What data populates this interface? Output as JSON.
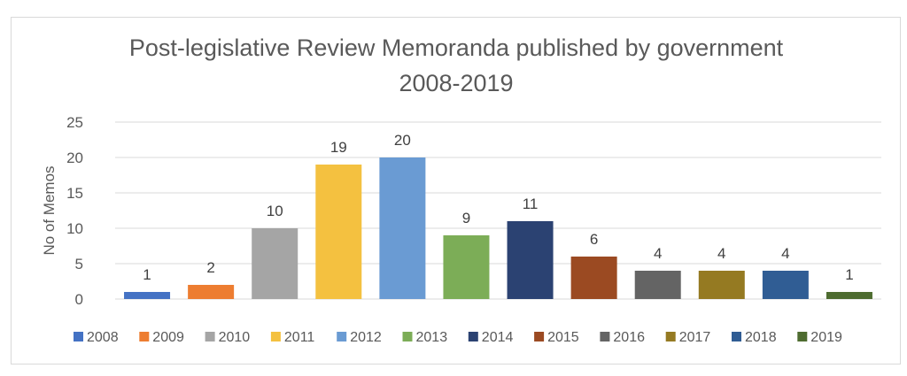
{
  "chart_data": {
    "type": "bar",
    "title": "Post-legislative Review Memoranda published by government",
    "subtitle": "2008-2019",
    "xlabel": "",
    "ylabel": "No of Memos",
    "ylim": [
      0,
      25
    ],
    "yticks": [
      "0",
      "5",
      "10",
      "15",
      "20",
      "25"
    ],
    "grid": true,
    "legend_position": "bottom",
    "categories": [
      "2008",
      "2009",
      "2010",
      "2011",
      "2012",
      "2013",
      "2014",
      "2015",
      "2016",
      "2017",
      "2018",
      "2019"
    ],
    "values": [
      1,
      2,
      10,
      19,
      20,
      9,
      11,
      6,
      4,
      4,
      4,
      1
    ],
    "colors": [
      "#4472c4",
      "#ed7d31",
      "#a5a5a5",
      "#f4c140",
      "#6a9bd3",
      "#7cad57",
      "#2b4272",
      "#9b4a22",
      "#646464",
      "#957a22",
      "#305d94",
      "#4e6c30"
    ]
  }
}
